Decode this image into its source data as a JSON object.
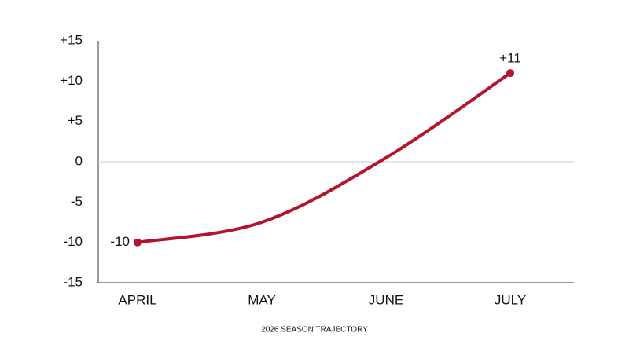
{
  "chart_data": {
    "type": "line",
    "categories": [
      "APRIL",
      "MAY",
      "JUNE",
      "JULY"
    ],
    "values": [
      -10,
      -7.5,
      0.5,
      11
    ],
    "value_labels": [
      "-10",
      null,
      null,
      "+11"
    ],
    "color": "#b5142e",
    "xlabel": "2026 SEASON TRAJECTORY",
    "ylim": [
      -15,
      15
    ],
    "yticks": [
      {
        "value": -15,
        "label": "-15"
      },
      {
        "value": -10,
        "label": "-10"
      },
      -5,
      0,
      {
        "value": 5,
        "label": "+5"
      },
      {
        "value": 10,
        "label": "+10"
      },
      {
        "value": 15,
        "label": "+15"
      }
    ],
    "zero_line": true
  }
}
